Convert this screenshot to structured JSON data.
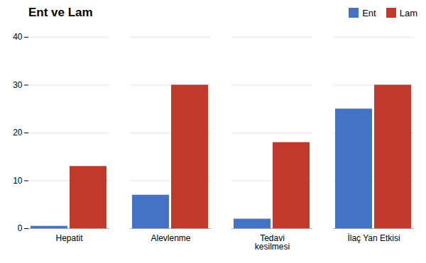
{
  "chart_data": {
    "type": "bar",
    "title": "Ent ve Lam",
    "categories": [
      "Hepatit",
      "Alevlenme",
      "Tedavi\nkesilmesi",
      "İlaç Yan Etkisi"
    ],
    "series": [
      {
        "name": "Ent",
        "color": "#4472c4",
        "values": [
          0.5,
          7,
          2,
          25
        ]
      },
      {
        "name": "Lam",
        "color": "#c0392b",
        "values": [
          13,
          30,
          18,
          30
        ]
      }
    ],
    "ylim": [
      0,
      40
    ],
    "yticks": [
      0,
      10,
      20,
      30,
      40
    ],
    "grid": true,
    "legend": "upper right"
  }
}
